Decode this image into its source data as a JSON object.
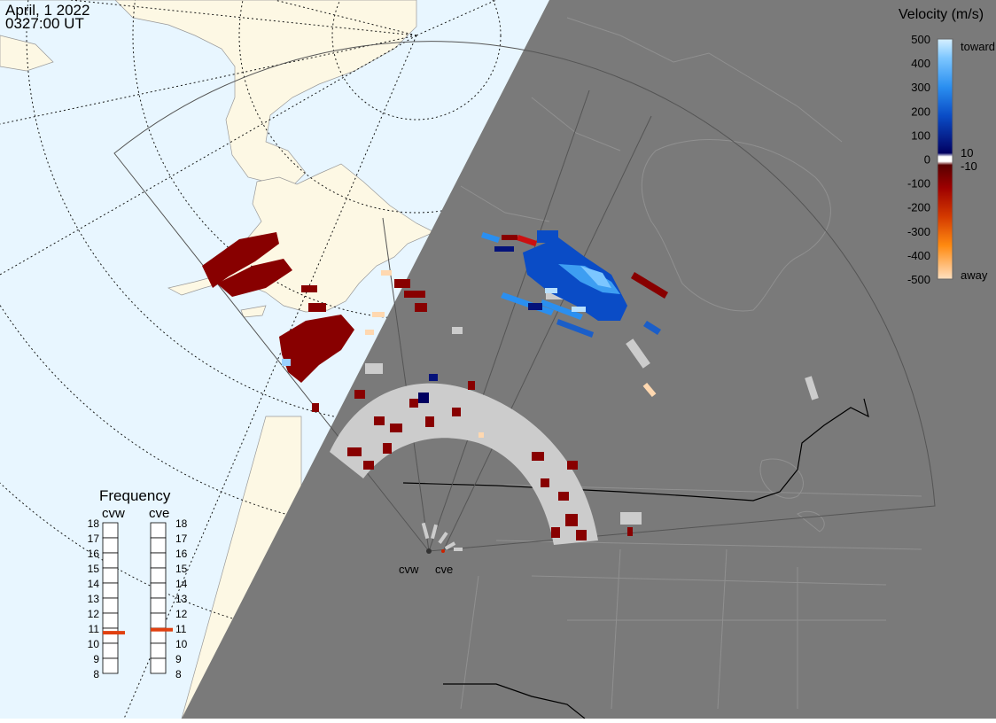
{
  "header": {
    "date": "April, 1 2022",
    "time": "0327:00 UT"
  },
  "radars": [
    {
      "code": "cvw"
    },
    {
      "code": "cve"
    }
  ],
  "velocity_scale": {
    "title": "Velocity (m/s)",
    "ticks": [
      "500",
      "400",
      "300",
      "200",
      "100",
      "0",
      "-100",
      "-200",
      "-300",
      "-400",
      "-500"
    ],
    "toward_label": "toward",
    "away_label": "away",
    "small_pos_label": "10",
    "small_neg_label": "-10"
  },
  "frequency": {
    "title": "Frequency",
    "columns": [
      "cvw",
      "cve"
    ],
    "levels": [
      "18",
      "17",
      "16",
      "15",
      "14",
      "13",
      "12",
      "11",
      "10",
      "9",
      "8"
    ],
    "cvw_mhz": 10.7,
    "cve_mhz": 10.9
  },
  "colors": {
    "ocean": "#e8f6ff",
    "land_day": "#fdf8e4",
    "night": "#7a7a7a",
    "night_coast": "#909090",
    "ground_scatter": "#cccccc",
    "away_strong": "#880000",
    "away_light": "#ffd8b0",
    "toward_strong": "#0a1f8a",
    "toward_mid": "#1b5ec8",
    "toward_light": "#5fb2f2"
  }
}
